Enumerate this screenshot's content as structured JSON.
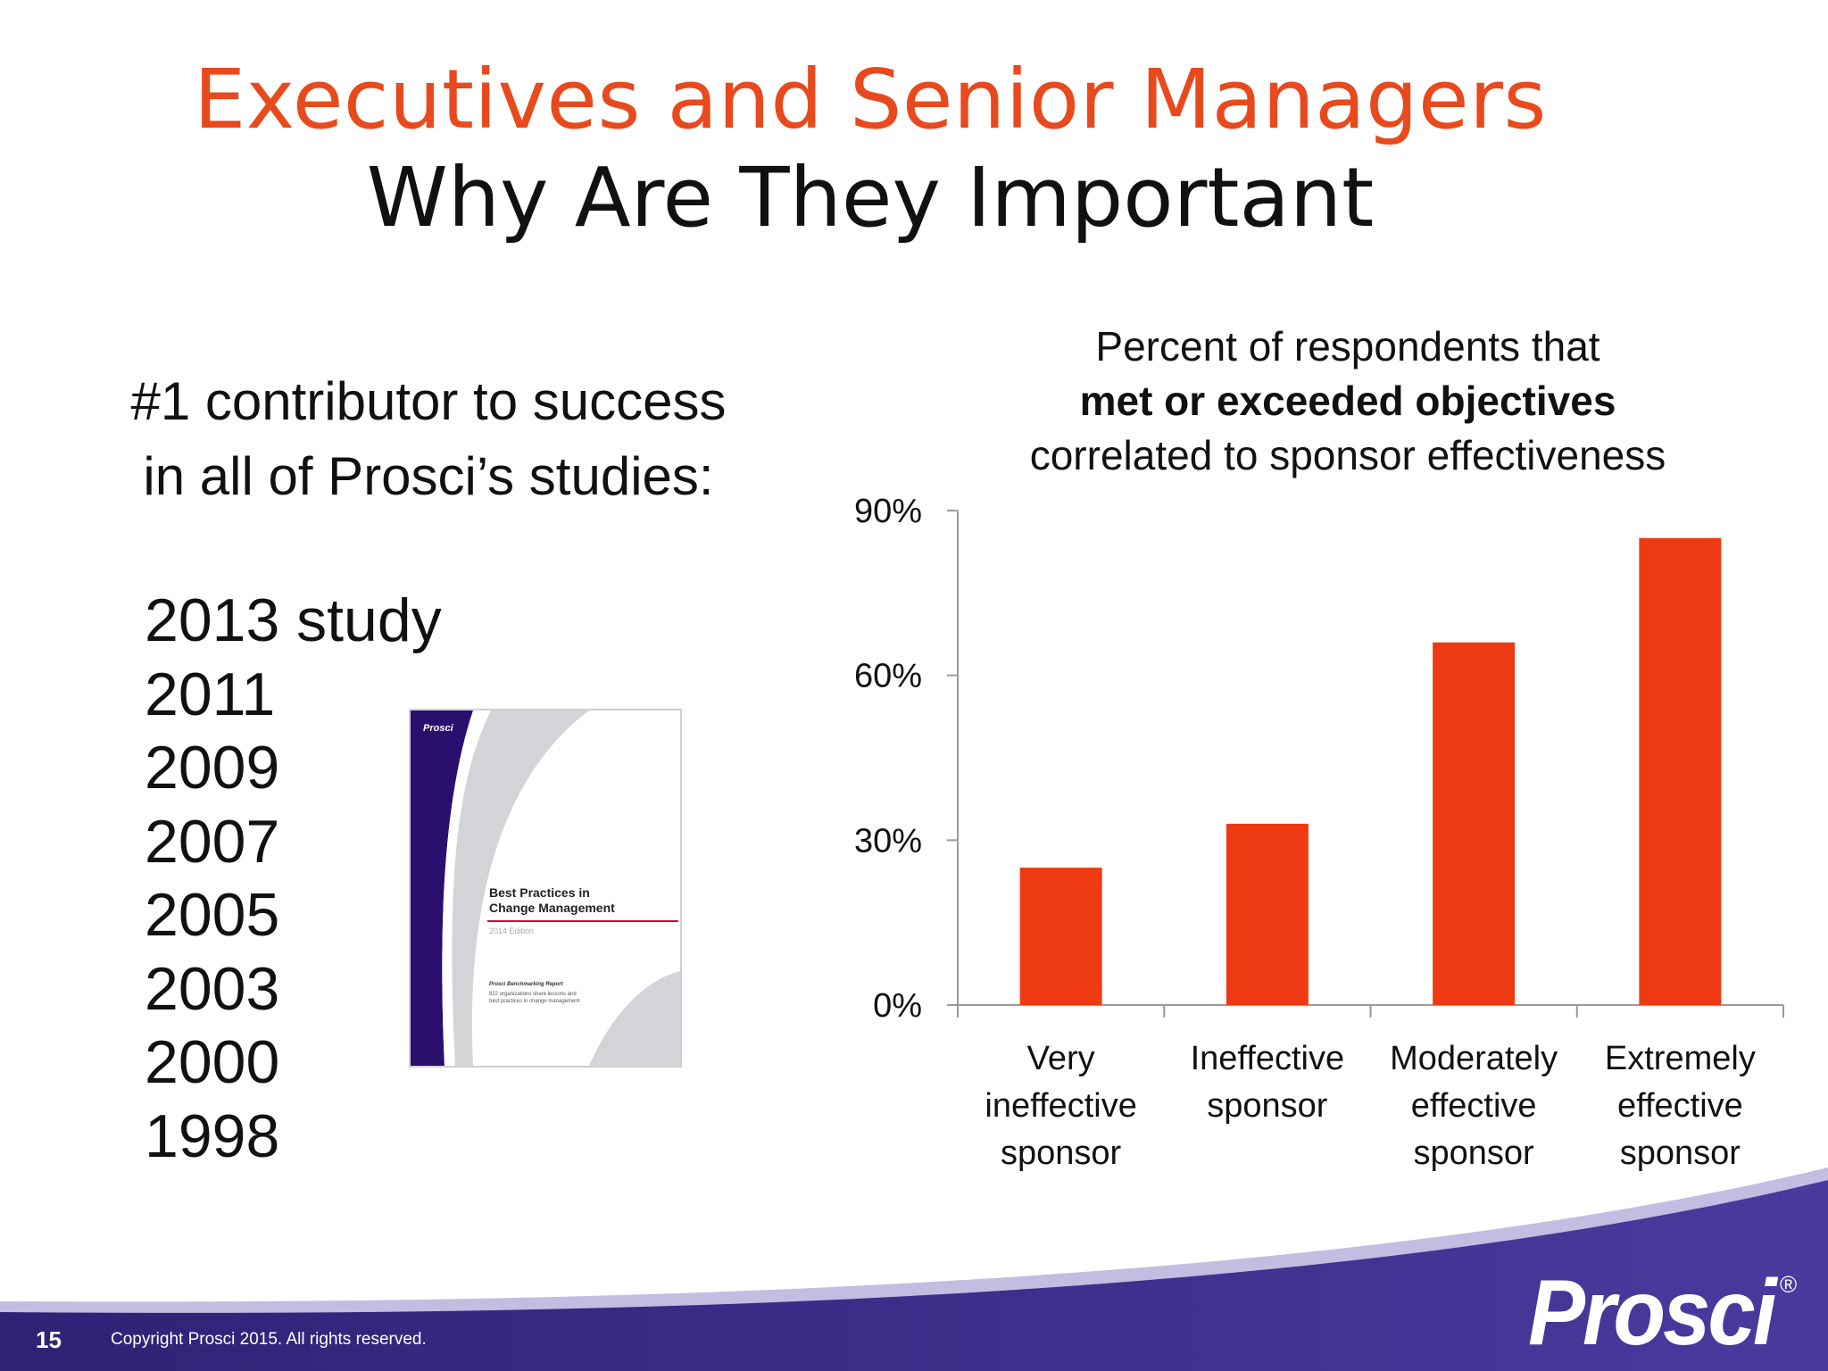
{
  "slide": {
    "title_line1": "Executives and Senior Managers",
    "title_line2": "Why Are They Important",
    "lead_line1": "#1 contributor to success",
    "lead_line2": "in all of Prosci’s studies:",
    "years": [
      "2013 study",
      "2011",
      "2009",
      "2007",
      "2005",
      "2003",
      "2000",
      "1998"
    ],
    "chart_title": {
      "line1": "Percent of respondents that",
      "line2": "met or exceeded objectives",
      "line3": "correlated to sponsor effectiveness"
    }
  },
  "book": {
    "brand": "Prosci",
    "title_line1": "Best Practices in",
    "title_line2": "Change Management",
    "edition": "2014 Edition",
    "report": "Prosci Benchmarking Report",
    "desc_line1": "822 organizations share lessons and",
    "desc_line2": "best practices in change management",
    "colors": {
      "spine": "#2b0f6e",
      "rule": "#c8102e",
      "swoosh": "#d3d4d8"
    }
  },
  "chart_data": {
    "type": "bar",
    "categories": [
      [
        "Very",
        "ineffective",
        "sponsor"
      ],
      [
        "Ineffective",
        "sponsor"
      ],
      [
        "Moderately",
        "effective",
        "sponsor"
      ],
      [
        "Extremely",
        "effective",
        "sponsor"
      ]
    ],
    "values": [
      25,
      33,
      66,
      85
    ],
    "ylim": [
      0,
      90
    ],
    "yticks": [
      0,
      30,
      60,
      90
    ],
    "ytick_labels": [
      "0%",
      "30%",
      "60%",
      "90%"
    ],
    "bar_color": "#ee3a12",
    "axis_color": "#9a9a9a",
    "grid": false
  },
  "footer": {
    "page_number": "15",
    "copyright": "Copyright Prosci 2015. All rights reserved.",
    "logo": "Prosci",
    "logo_mark": "®",
    "band_color": "#3b2a8a"
  }
}
